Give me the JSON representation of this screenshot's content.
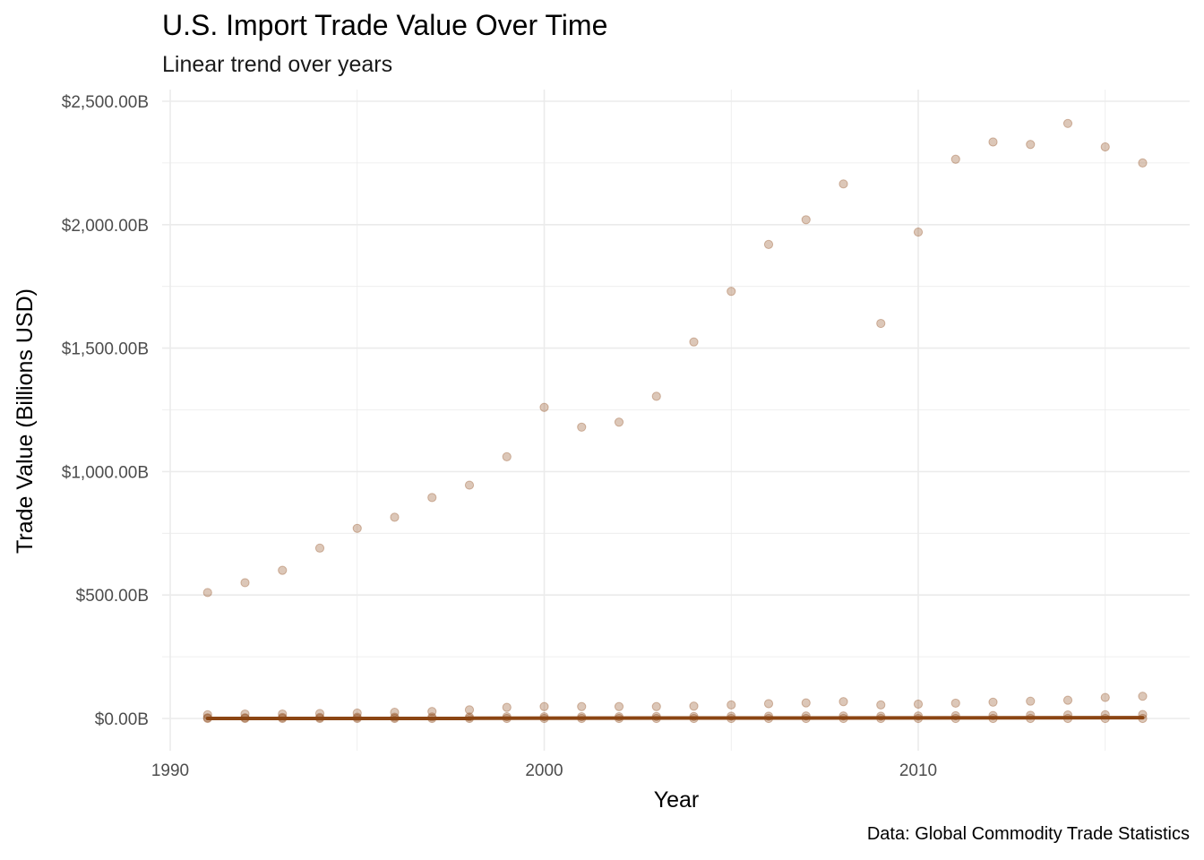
{
  "chart_data": {
    "type": "scatter",
    "title": "U.S. Import Trade Value Over Time",
    "subtitle": "Linear trend over years",
    "caption": "Data: Global Commodity Trade Statistics",
    "xlabel": "Year",
    "ylabel": "Trade Value (Billions USD)",
    "xlim": [
      1990,
      2017
    ],
    "ylim": [
      -100,
      2500
    ],
    "x_ticks": [
      1990,
      2000,
      2010
    ],
    "x_tick_labels": [
      "1990",
      "2000",
      "2010"
    ],
    "y_ticks": [
      0,
      500,
      1000,
      1500,
      2000,
      2500
    ],
    "y_tick_labels": [
      "$0.00B",
      "$500.00B",
      "$1,000.00B",
      "$1,500.00B",
      "$2,000.00B",
      "$2,500.00B"
    ],
    "grid": true,
    "colors": {
      "point": "#8B4513",
      "trend": "#8B4513",
      "grid": "#ebebeb"
    },
    "series": [
      {
        "x": [
          1991,
          1992,
          1993,
          1994,
          1995,
          1996,
          1997,
          1998,
          1999,
          2000,
          2001,
          2002,
          2003,
          2004,
          2005,
          2006,
          2007,
          2008,
          2009,
          2010,
          2011,
          2012,
          2013,
          2014,
          2015,
          2016
        ],
        "values": [
          510,
          550,
          600,
          690,
          770,
          815,
          895,
          945,
          1060,
          1260,
          1180,
          1200,
          1305,
          1525,
          1730,
          1920,
          2020,
          2165,
          1600,
          1970,
          2265,
          2335,
          2325,
          2410,
          2315,
          2250
        ]
      },
      {
        "x": [
          1991,
          1992,
          1993,
          1994,
          1995,
          1996,
          1997,
          1998,
          1999,
          2000,
          2001,
          2002,
          2003,
          2004,
          2005,
          2006,
          2007,
          2008,
          2009,
          2010,
          2011,
          2012,
          2013,
          2014,
          2015,
          2016
        ],
        "values": [
          15,
          18,
          18,
          20,
          22,
          25,
          28,
          35,
          45,
          48,
          48,
          48,
          48,
          50,
          55,
          60,
          63,
          68,
          55,
          58,
          62,
          66,
          70,
          74,
          85,
          90
        ]
      },
      {
        "x": [
          1991,
          1992,
          1993,
          1994,
          1995,
          1996,
          1997,
          1998,
          1999,
          2000,
          2001,
          2002,
          2003,
          2004,
          2005,
          2006,
          2007,
          2008,
          2009,
          2010,
          2011,
          2012,
          2013,
          2014,
          2015,
          2016
        ],
        "values": [
          3,
          3,
          4,
          4,
          5,
          5,
          6,
          6,
          7,
          7,
          7,
          7,
          8,
          8,
          9,
          9,
          10,
          10,
          9,
          10,
          11,
          12,
          13,
          14,
          15,
          16
        ]
      },
      {
        "x": [
          1991,
          1992,
          1993,
          1994,
          1995,
          1996,
          1997,
          1998,
          1999,
          2000,
          2001,
          2002,
          2003,
          2004,
          2005,
          2006,
          2007,
          2008,
          2009,
          2010,
          2011,
          2012,
          2013,
          2014,
          2015,
          2016
        ],
        "values": [
          0,
          0,
          0,
          0,
          0,
          0,
          0,
          0,
          0,
          0,
          0,
          0,
          0,
          0,
          0,
          0,
          0,
          0,
          0,
          0,
          0,
          0,
          0,
          0,
          0,
          0
        ]
      }
    ],
    "trend": {
      "x": [
        1991,
        1998,
        1998,
        2016
      ],
      "values": [
        0,
        0,
        1,
        3
      ]
    }
  }
}
